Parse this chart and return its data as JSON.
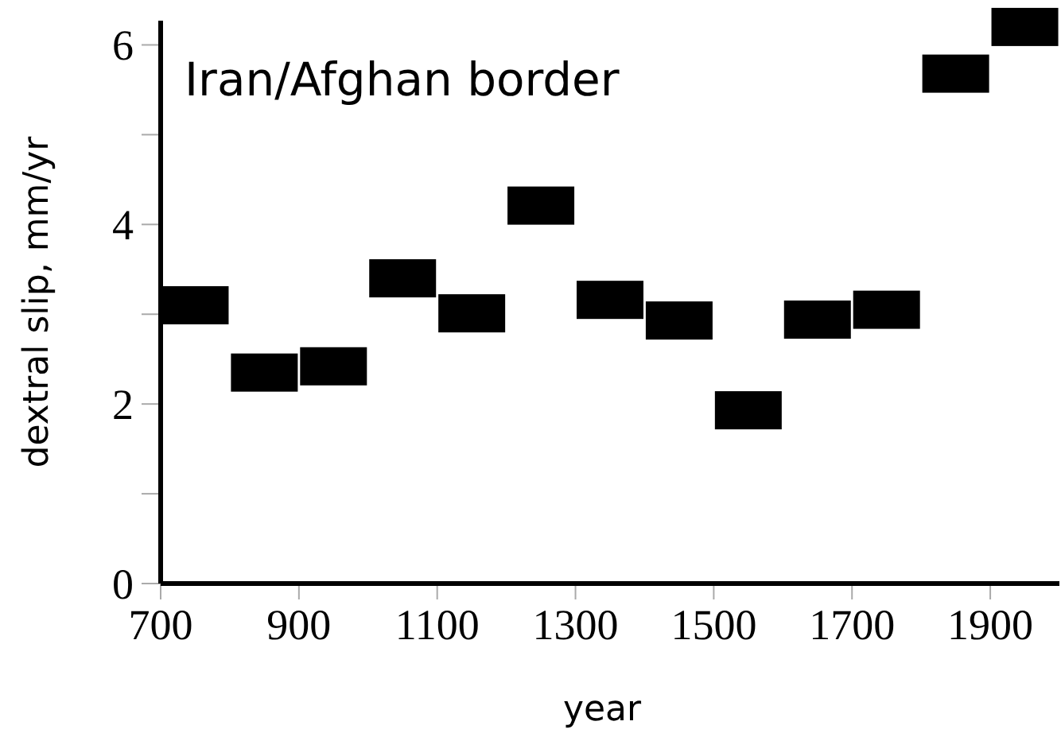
{
  "chart_data": {
    "type": "scatter",
    "title": "Iran/Afghan border",
    "xlabel": "year",
    "ylabel": "dextral slip, mm/yr",
    "x": [
      750,
      850,
      950,
      1050,
      1150,
      1250,
      1350,
      1450,
      1550,
      1650,
      1750,
      1850,
      1950
    ],
    "series": [
      {
        "color": "#000000",
        "values": [
          3.1,
          2.35,
          2.42,
          3.4,
          3.01,
          4.21,
          3.16,
          2.93,
          1.93,
          2.94,
          3.05,
          5.68,
          6.2
        ]
      }
    ],
    "marker": "square",
    "xlim": [
      700,
      2000
    ],
    "xticks": [
      700,
      900,
      1100,
      1300,
      1500,
      1700,
      1900
    ],
    "ylim": [
      0,
      6.27
    ],
    "yticks": [
      0,
      {
        "value": 1,
        "label": null
      },
      2,
      {
        "value": 3,
        "label": null
      },
      4,
      {
        "value": 5,
        "label": null
      },
      6
    ],
    "grid": false
  }
}
